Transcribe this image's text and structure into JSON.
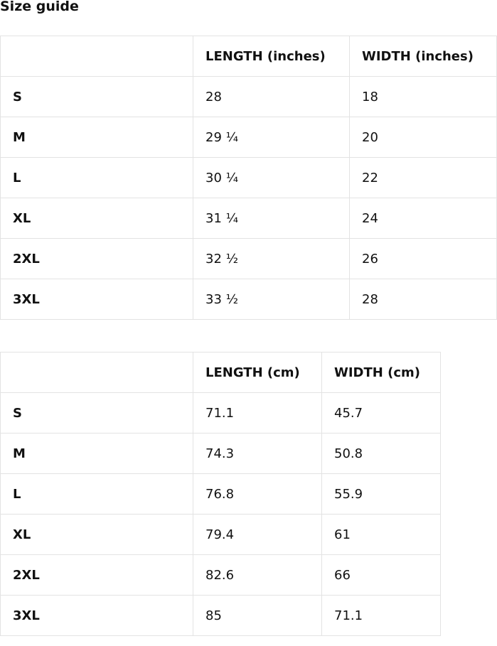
{
  "title": "Size guide",
  "tables": [
    {
      "headers": [
        "",
        "LENGTH (inches)",
        "WIDTH (inches)"
      ],
      "rows": [
        [
          "S",
          "28",
          "18"
        ],
        [
          "M",
          "29 ¼",
          "20"
        ],
        [
          "L",
          "30 ¼",
          "22"
        ],
        [
          "XL",
          "31 ¼",
          "24"
        ],
        [
          "2XL",
          "32 ½",
          "26"
        ],
        [
          "3XL",
          "33 ½",
          "28"
        ]
      ]
    },
    {
      "headers": [
        "",
        "LENGTH (cm)",
        "WIDTH (cm)"
      ],
      "rows": [
        [
          "S",
          "71.1",
          "45.7"
        ],
        [
          "M",
          "74.3",
          "50.8"
        ],
        [
          "L",
          "76.8",
          "55.9"
        ],
        [
          "XL",
          "79.4",
          "61"
        ],
        [
          "2XL",
          "82.6",
          "66"
        ],
        [
          "3XL",
          "85",
          "71.1"
        ]
      ]
    }
  ]
}
